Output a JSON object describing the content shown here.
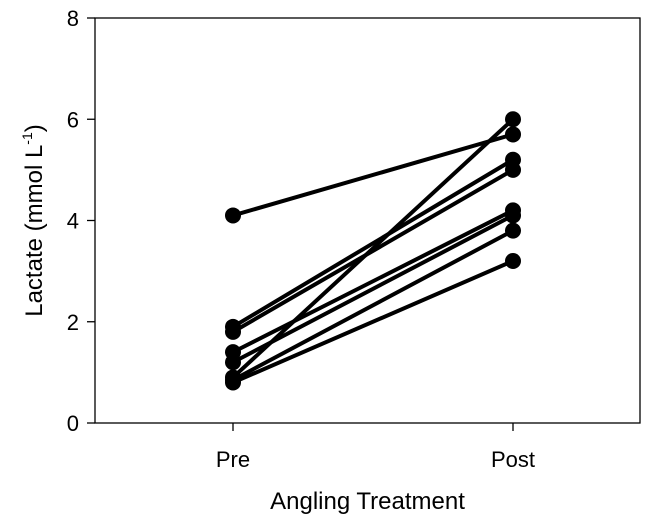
{
  "chart_data": {
    "type": "line",
    "title": "",
    "categories": [
      "Pre",
      "Post"
    ],
    "xlabel": "Angling Treatment",
    "ylabel": {
      "main": "Lactate (mmol L",
      "sup": "-1",
      "close": ")"
    },
    "ylim": [
      0,
      8
    ],
    "yticks": [
      0,
      2,
      4,
      6,
      8
    ],
    "grid": false,
    "legend": "none",
    "color": "#000000",
    "series": [
      {
        "values": [
          4.1,
          5.7
        ]
      },
      {
        "values": [
          1.9,
          5.2
        ]
      },
      {
        "values": [
          1.8,
          5.0
        ]
      },
      {
        "values": [
          1.4,
          4.2
        ]
      },
      {
        "values": [
          1.2,
          4.1
        ]
      },
      {
        "values": [
          0.9,
          6.0
        ]
      },
      {
        "values": [
          0.85,
          3.8
        ]
      },
      {
        "values": [
          0.8,
          3.2
        ]
      }
    ]
  }
}
